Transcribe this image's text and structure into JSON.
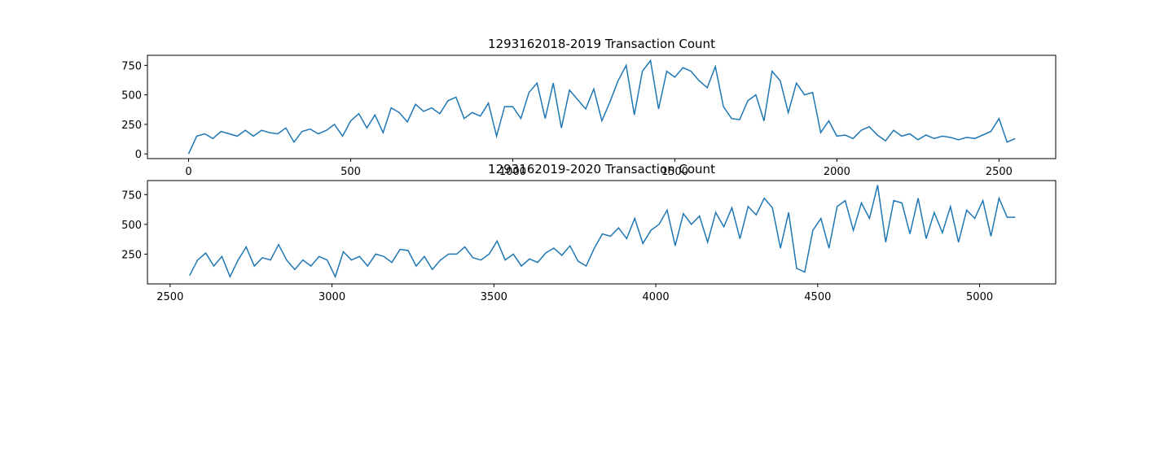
{
  "chart_data": [
    {
      "type": "line",
      "title": "1293162018-2019 Transaction Count",
      "color": "#1f77b4",
      "x": [
        0,
        25,
        50,
        75,
        100,
        125,
        150,
        175,
        200,
        225,
        250,
        275,
        300,
        325,
        350,
        375,
        400,
        425,
        450,
        475,
        500,
        525,
        550,
        575,
        600,
        625,
        650,
        675,
        700,
        725,
        750,
        775,
        800,
        825,
        850,
        875,
        900,
        925,
        950,
        975,
        1000,
        1025,
        1050,
        1075,
        1100,
        1125,
        1150,
        1175,
        1200,
        1225,
        1250,
        1275,
        1300,
        1325,
        1350,
        1375,
        1400,
        1425,
        1450,
        1475,
        1500,
        1525,
        1550,
        1575,
        1600,
        1625,
        1650,
        1675,
        1700,
        1725,
        1750,
        1775,
        1800,
        1825,
        1850,
        1875,
        1900,
        1925,
        1950,
        1975,
        2000,
        2025,
        2050,
        2075,
        2100,
        2125,
        2150,
        2175,
        2200,
        2225,
        2250,
        2275,
        2300,
        2325,
        2350,
        2375,
        2400,
        2425,
        2450,
        2475,
        2500,
        2525,
        2550
      ],
      "values": [
        0,
        150,
        170,
        130,
        190,
        170,
        150,
        200,
        150,
        200,
        180,
        170,
        220,
        100,
        190,
        210,
        170,
        200,
        250,
        150,
        280,
        340,
        220,
        330,
        180,
        390,
        350,
        270,
        420,
        360,
        390,
        340,
        450,
        480,
        300,
        350,
        320,
        430,
        150,
        400,
        400,
        300,
        520,
        600,
        300,
        600,
        220,
        540,
        460,
        380,
        550,
        280,
        440,
        620,
        750,
        330,
        700,
        790,
        380,
        700,
        650,
        730,
        700,
        620,
        560,
        740,
        400,
        300,
        290,
        450,
        500,
        280,
        700,
        620,
        350,
        600,
        500,
        520,
        180,
        280,
        150,
        160,
        130,
        200,
        230,
        160,
        110,
        200,
        150,
        170,
        120,
        160,
        130,
        150,
        140,
        120,
        140,
        130,
        160,
        190,
        300,
        100,
        130
      ],
      "xlim": [
        -127,
        2675
      ],
      "ylim": [
        -40,
        835
      ],
      "xticks": [
        0,
        500,
        1000,
        1500,
        2000,
        2500
      ],
      "yticks": [
        0,
        250,
        500,
        750
      ]
    },
    {
      "type": "line",
      "title": "1293162019-2020 Transaction Count",
      "color": "#1f77b4",
      "x": [
        2560,
        2585,
        2610,
        2635,
        2660,
        2685,
        2710,
        2735,
        2760,
        2785,
        2810,
        2835,
        2860,
        2885,
        2910,
        2935,
        2960,
        2985,
        3010,
        3035,
        3060,
        3085,
        3110,
        3135,
        3160,
        3185,
        3210,
        3235,
        3260,
        3285,
        3310,
        3335,
        3360,
        3385,
        3410,
        3435,
        3460,
        3485,
        3510,
        3535,
        3560,
        3585,
        3610,
        3635,
        3660,
        3685,
        3710,
        3735,
        3760,
        3785,
        3810,
        3835,
        3860,
        3885,
        3910,
        3935,
        3960,
        3985,
        4010,
        4035,
        4060,
        4085,
        4110,
        4135,
        4160,
        4185,
        4210,
        4235,
        4260,
        4285,
        4310,
        4335,
        4360,
        4385,
        4410,
        4435,
        4460,
        4485,
        4510,
        4535,
        4560,
        4585,
        4610,
        4635,
        4660,
        4685,
        4710,
        4735,
        4760,
        4785,
        4810,
        4835,
        4860,
        4885,
        4910,
        4935,
        4960,
        4985,
        5010,
        5035,
        5060,
        5085,
        5110
      ],
      "values": [
        70,
        200,
        260,
        150,
        230,
        60,
        200,
        310,
        150,
        220,
        200,
        330,
        200,
        120,
        200,
        150,
        230,
        200,
        60,
        270,
        200,
        230,
        150,
        250,
        230,
        180,
        290,
        280,
        150,
        230,
        120,
        200,
        250,
        250,
        310,
        220,
        200,
        250,
        360,
        200,
        250,
        150,
        210,
        180,
        260,
        300,
        240,
        320,
        190,
        150,
        300,
        420,
        400,
        470,
        380,
        550,
        340,
        450,
        500,
        620,
        320,
        590,
        500,
        570,
        350,
        600,
        480,
        640,
        380,
        650,
        580,
        720,
        640,
        300,
        600,
        130,
        100,
        450,
        550,
        300,
        650,
        700,
        450,
        680,
        550,
        830,
        350,
        700,
        680,
        420,
        720,
        380,
        600,
        430,
        650,
        350,
        620,
        550,
        700,
        400,
        720,
        560,
        560
      ],
      "xlim": [
        2430,
        5235
      ],
      "ylim": [
        0,
        868
      ],
      "xticks": [
        2500,
        3000,
        3500,
        4000,
        4500,
        5000
      ],
      "yticks": [
        250,
        500,
        750
      ]
    }
  ]
}
